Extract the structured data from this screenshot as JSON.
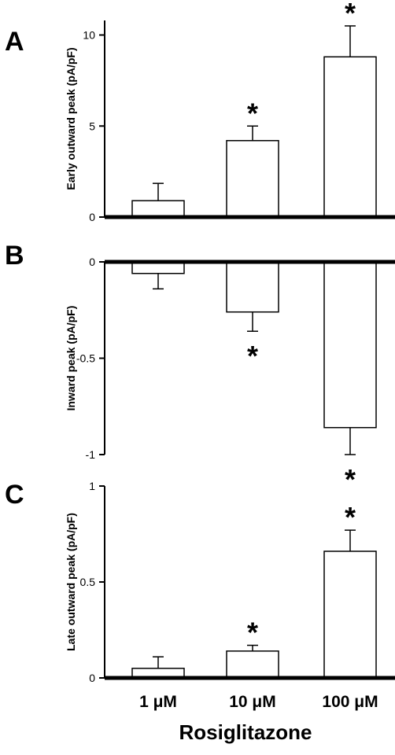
{
  "figure": {
    "xlabel": "Rosiglitazone"
  },
  "chart_data": [
    {
      "type": "bar",
      "panel": "A",
      "categories": [
        "1 μM",
        "10 μM",
        "100 μM"
      ],
      "values": [
        0.9,
        4.2,
        8.8
      ],
      "errors": [
        0.95,
        0.8,
        1.7
      ],
      "significance": [
        "",
        "*",
        "*"
      ],
      "ylabel": "Early outward peak (pA/pF)",
      "ylim": [
        0,
        10.8
      ],
      "yticks": [
        0,
        5,
        10
      ],
      "ytick_labels": [
        "0",
        "5",
        "10"
      ],
      "grid": false
    },
    {
      "type": "bar",
      "panel": "B",
      "categories": [
        "1 μM",
        "10 μM",
        "100 μM"
      ],
      "values": [
        -0.06,
        -0.26,
        -0.86
      ],
      "errors": [
        0.08,
        0.1,
        0.14
      ],
      "significance": [
        "",
        "*",
        "*"
      ],
      "ylabel": "Inward peak (pA/pF)",
      "ylim": [
        -1,
        0
      ],
      "yticks": [
        0,
        -0.5,
        -1
      ],
      "ytick_labels": [
        "0",
        "-0.5",
        "-1"
      ],
      "grid": false
    },
    {
      "type": "bar",
      "panel": "C",
      "categories": [
        "1 μM",
        "10 μM",
        "100 μM"
      ],
      "values": [
        0.05,
        0.14,
        0.66
      ],
      "errors": [
        0.06,
        0.03,
        0.11
      ],
      "significance": [
        "",
        "*",
        "*"
      ],
      "ylabel": "Late outward peak (pA/pF)",
      "ylim": [
        0,
        1
      ],
      "yticks": [
        0,
        0.5,
        1
      ],
      "ytick_labels": [
        "0",
        "0.5",
        "1"
      ],
      "grid": false
    }
  ]
}
